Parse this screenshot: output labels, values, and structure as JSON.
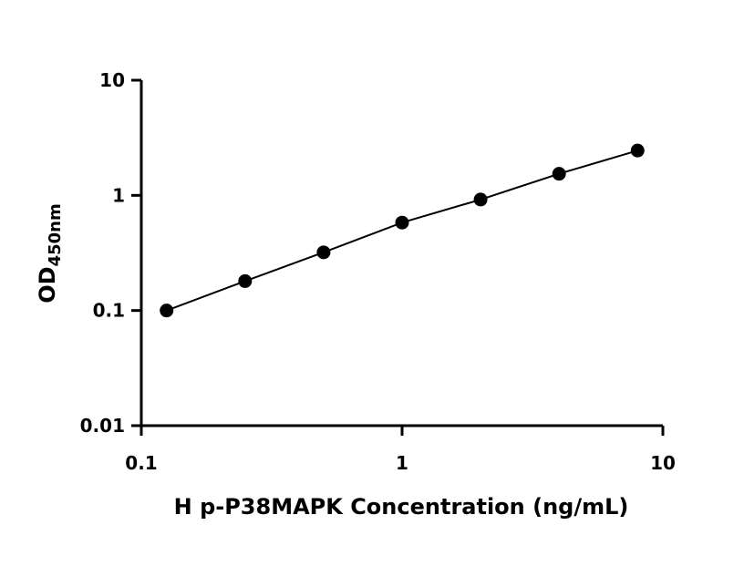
{
  "chart_data": {
    "type": "scatter",
    "title": "",
    "xlabel": "H p-P38MAPK Concentration (ng/mL)",
    "ylabel_main": "OD",
    "ylabel_sub": "450nm",
    "x_scale": "log",
    "y_scale": "log",
    "xlim": [
      0.1,
      10
    ],
    "ylim": [
      0.01,
      10
    ],
    "x_ticks": [
      {
        "value": 0.1,
        "label": "0.1"
      },
      {
        "value": 1,
        "label": "1"
      },
      {
        "value": 10,
        "label": "10"
      }
    ],
    "y_ticks": [
      {
        "value": 0.01,
        "label": "0.01"
      },
      {
        "value": 0.1,
        "label": "0.1"
      },
      {
        "value": 1,
        "label": "1"
      },
      {
        "value": 10,
        "label": "10"
      }
    ],
    "grid": false,
    "legend": "none",
    "series": [
      {
        "x": [
          0.125,
          0.25,
          0.5,
          1,
          2,
          4,
          8
        ],
        "y": [
          0.1,
          0.18,
          0.32,
          0.58,
          0.92,
          1.54,
          2.45
        ],
        "marker": "filled-circle",
        "color": "#000000",
        "fit_line": true
      }
    ]
  }
}
